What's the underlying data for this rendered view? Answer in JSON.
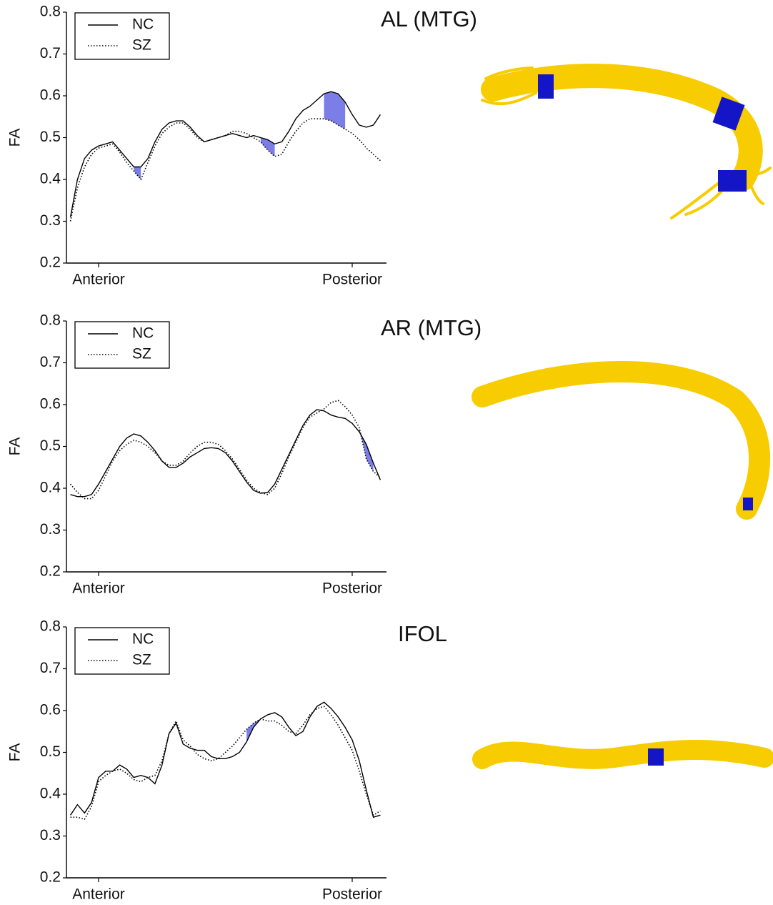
{
  "chart_data": [
    {
      "type": "line",
      "title": "AL (MTG)",
      "y_label": "FA",
      "categories": [
        null,
        null,
        null,
        null,
        "Anterior",
        null,
        null,
        null,
        null,
        null,
        null,
        null,
        null,
        null,
        null,
        null,
        null,
        null,
        null,
        null,
        null,
        null,
        null,
        null,
        null,
        null,
        null,
        null,
        null,
        null,
        null,
        null,
        null,
        null,
        null,
        null,
        null,
        null,
        null,
        null,
        "Posterior",
        null,
        null,
        null,
        null
      ],
      "series": [
        {
          "name": "NC",
          "color": "#000000",
          "style": "solid",
          "values": [
            0.31,
            0.4,
            0.45,
            0.47,
            0.48,
            0.485,
            0.49,
            0.47,
            0.45,
            0.43,
            0.43,
            0.45,
            0.49,
            0.52,
            0.535,
            0.54,
            0.54,
            0.525,
            0.505,
            0.49,
            0.495,
            0.5,
            0.505,
            0.51,
            0.505,
            0.5,
            0.505,
            0.5,
            0.495,
            0.485,
            0.49,
            0.515,
            0.545,
            0.565,
            0.575,
            0.59,
            0.605,
            0.61,
            0.605,
            0.585,
            0.555,
            0.53,
            0.525,
            0.53,
            0.555
          ]
        },
        {
          "name": "SZ",
          "color": "#000000",
          "style": "dotted",
          "values": [
            0.3,
            0.38,
            0.43,
            0.46,
            0.475,
            0.48,
            0.485,
            0.465,
            0.44,
            0.42,
            0.4,
            0.44,
            0.48,
            0.51,
            0.525,
            0.535,
            0.535,
            0.52,
            0.5,
            0.49,
            0.495,
            0.5,
            0.505,
            0.515,
            0.515,
            0.51,
            0.5,
            0.49,
            0.47,
            0.455,
            0.46,
            0.49,
            0.515,
            0.535,
            0.545,
            0.545,
            0.545,
            0.54,
            0.53,
            0.52,
            0.51,
            0.495,
            0.475,
            0.46,
            0.445
          ]
        }
      ],
      "shaded_categories": [
        9,
        10,
        27,
        28,
        29,
        36,
        37,
        38,
        39
      ],
      "shade_color": "#7a7ee6",
      "ylim": [
        0.2,
        0.8
      ],
      "yticks": [
        0.2,
        0.3,
        0.4,
        0.5,
        0.6,
        0.7,
        0.8
      ],
      "legend": "upper-left"
    },
    {
      "type": "line",
      "title": "AR (MTG)",
      "y_label": "FA",
      "categories": [
        null,
        null,
        null,
        null,
        "Anterior",
        null,
        null,
        null,
        null,
        null,
        null,
        null,
        null,
        null,
        null,
        null,
        null,
        null,
        null,
        null,
        null,
        null,
        null,
        null,
        null,
        null,
        null,
        null,
        null,
        null,
        null,
        null,
        null,
        null,
        null,
        null,
        null,
        null,
        null,
        null,
        "Posterior",
        null,
        null,
        null,
        null
      ],
      "series": [
        {
          "name": "NC",
          "color": "#000000",
          "style": "solid",
          "values": [
            0.385,
            0.38,
            0.38,
            0.385,
            0.41,
            0.44,
            0.47,
            0.5,
            0.52,
            0.53,
            0.525,
            0.51,
            0.49,
            0.465,
            0.45,
            0.45,
            0.46,
            0.475,
            0.485,
            0.495,
            0.497,
            0.495,
            0.485,
            0.465,
            0.44,
            0.415,
            0.395,
            0.388,
            0.39,
            0.41,
            0.445,
            0.48,
            0.515,
            0.55,
            0.575,
            0.588,
            0.585,
            0.575,
            0.57,
            0.567,
            0.555,
            0.535,
            0.505,
            0.46,
            0.42
          ]
        },
        {
          "name": "SZ",
          "color": "#000000",
          "style": "dotted",
          "values": [
            0.41,
            0.39,
            0.375,
            0.375,
            0.395,
            0.43,
            0.465,
            0.49,
            0.505,
            0.515,
            0.51,
            0.5,
            0.485,
            0.465,
            0.455,
            0.455,
            0.465,
            0.485,
            0.5,
            0.51,
            0.51,
            0.505,
            0.49,
            0.47,
            0.445,
            0.42,
            0.4,
            0.39,
            0.385,
            0.4,
            0.435,
            0.475,
            0.51,
            0.545,
            0.57,
            0.58,
            0.59,
            0.605,
            0.61,
            0.595,
            0.575,
            0.545,
            0.47,
            0.44,
            0.425
          ]
        }
      ],
      "shaded_categories": [
        41,
        42,
        43
      ],
      "shade_color": "#7a7ee6",
      "ylim": [
        0.2,
        0.8
      ],
      "yticks": [
        0.2,
        0.3,
        0.4,
        0.5,
        0.6,
        0.7,
        0.8
      ],
      "legend": "upper-left"
    },
    {
      "type": "line",
      "title": "IFOL",
      "y_label": "FA",
      "categories": [
        null,
        null,
        null,
        null,
        "Anterior",
        null,
        null,
        null,
        null,
        null,
        null,
        null,
        null,
        null,
        null,
        null,
        null,
        null,
        null,
        null,
        null,
        null,
        null,
        null,
        null,
        null,
        null,
        null,
        null,
        null,
        null,
        null,
        null,
        null,
        null,
        null,
        null,
        null,
        null,
        null,
        "Posterior",
        null,
        null,
        null,
        null
      ],
      "series": [
        {
          "name": "NC",
          "color": "#000000",
          "style": "solid",
          "values": [
            0.35,
            0.375,
            0.355,
            0.38,
            0.44,
            0.455,
            0.455,
            0.47,
            0.46,
            0.44,
            0.445,
            0.44,
            0.425,
            0.47,
            0.545,
            0.57,
            0.52,
            0.51,
            0.505,
            0.505,
            0.49,
            0.485,
            0.485,
            0.49,
            0.5,
            0.525,
            0.56,
            0.58,
            0.59,
            0.595,
            0.585,
            0.56,
            0.54,
            0.55,
            0.585,
            0.61,
            0.62,
            0.605,
            0.585,
            0.56,
            0.53,
            0.48,
            0.41,
            0.345,
            0.35
          ]
        },
        {
          "name": "SZ",
          "color": "#000000",
          "style": "dotted",
          "values": [
            0.345,
            0.345,
            0.34,
            0.37,
            0.43,
            0.445,
            0.455,
            0.46,
            0.45,
            0.435,
            0.43,
            0.44,
            0.445,
            0.48,
            0.545,
            0.575,
            0.53,
            0.515,
            0.495,
            0.485,
            0.48,
            0.485,
            0.5,
            0.515,
            0.535,
            0.555,
            0.57,
            0.58,
            0.575,
            0.575,
            0.565,
            0.55,
            0.545,
            0.565,
            0.59,
            0.605,
            0.61,
            0.59,
            0.565,
            0.535,
            0.505,
            0.455,
            0.4,
            0.35,
            0.36
          ]
        }
      ],
      "shaded_categories": [
        25,
        26,
        27
      ],
      "shade_color": "#7a7ee6",
      "ylim": [
        0.2,
        0.8
      ],
      "yticks": [
        0.2,
        0.3,
        0.4,
        0.5,
        0.6,
        0.7,
        0.8
      ],
      "legend": "upper-left"
    }
  ]
}
